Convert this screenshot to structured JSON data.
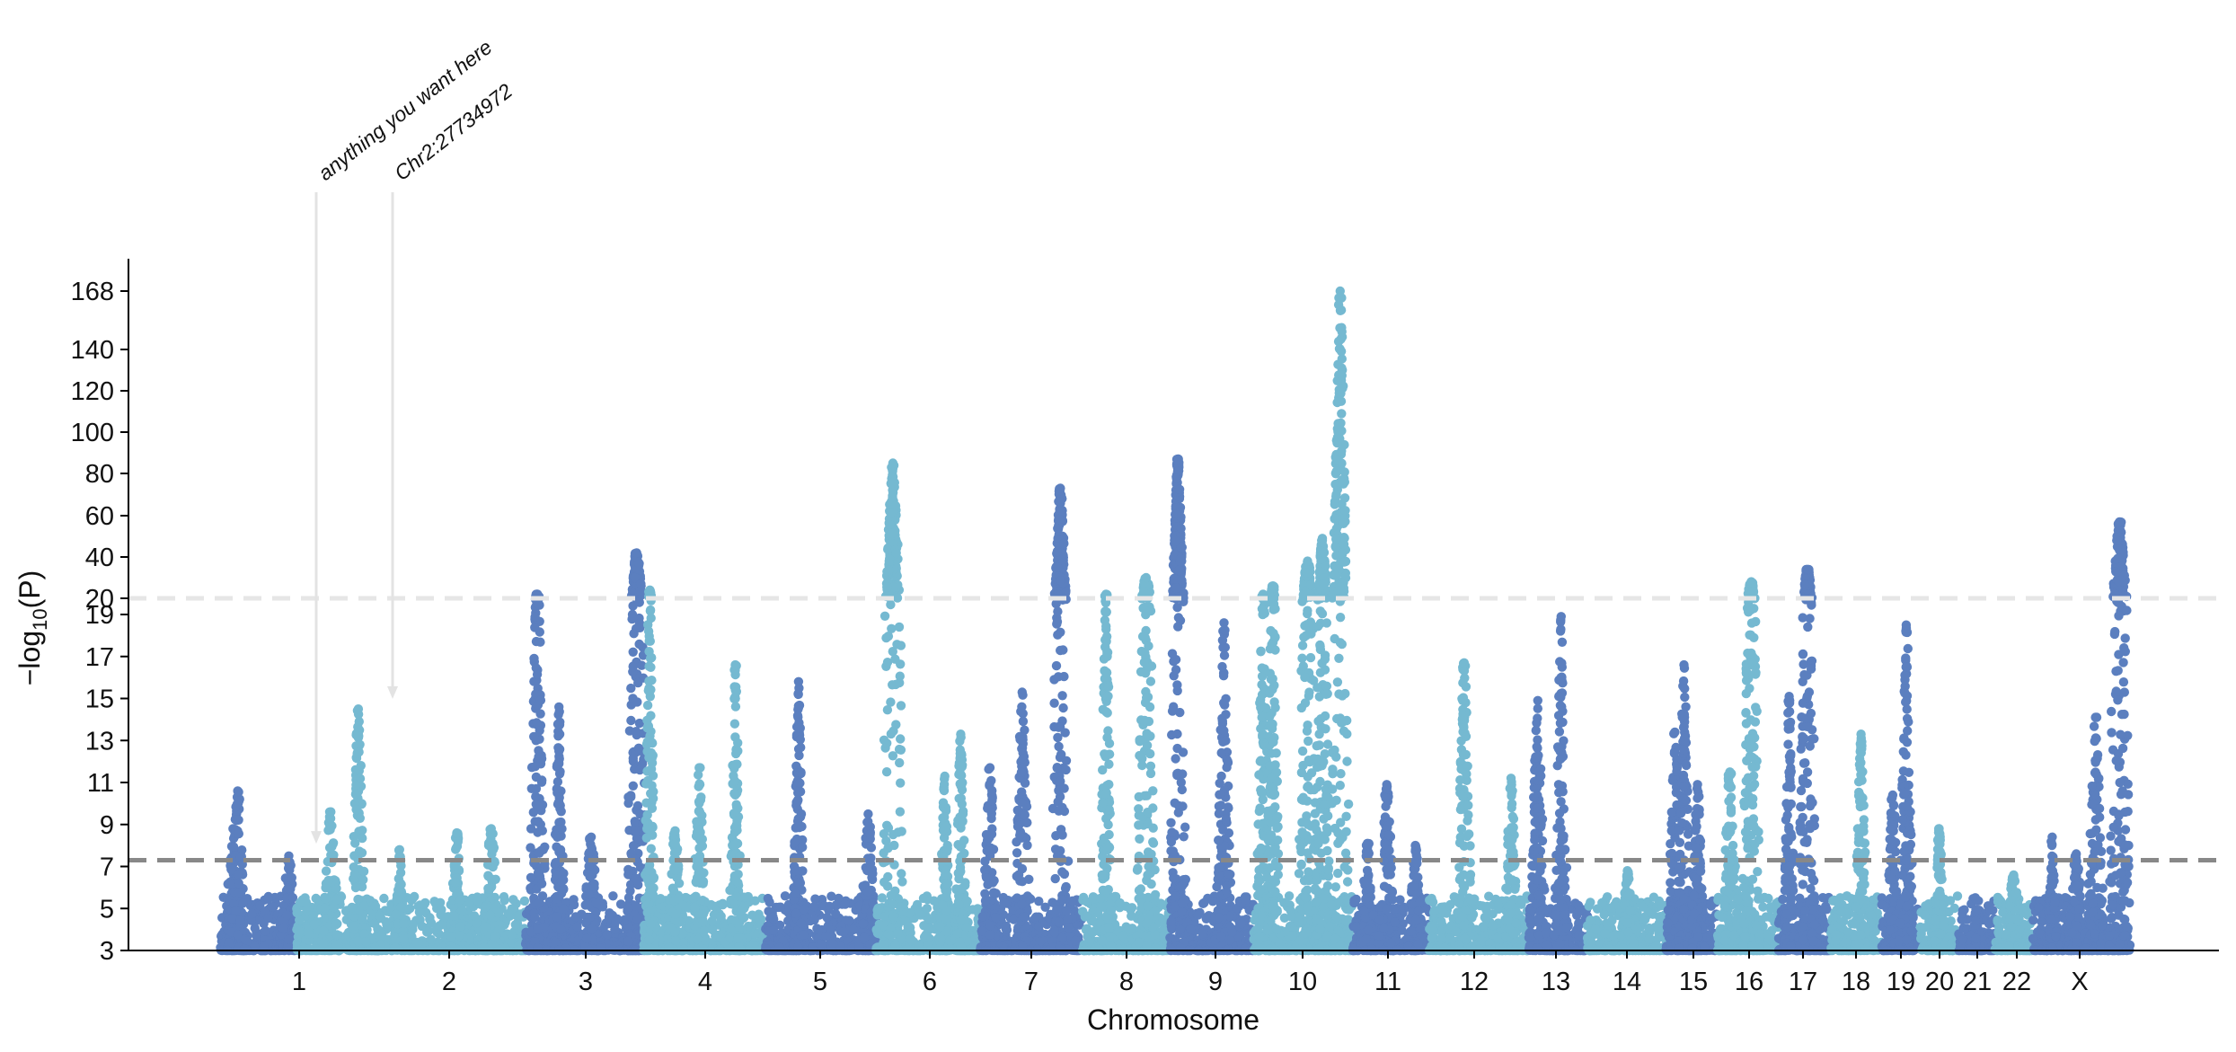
{
  "chart_data": {
    "type": "scatter",
    "subtype": "manhattan",
    "title": "",
    "xlabel": "Chromosome",
    "ylabel": "−log10(P)",
    "ylabel_main": "−log",
    "ylabel_sub": "10",
    "ylabel_tail": "(P)",
    "ylim": [
      3,
      168
    ],
    "axis_break": {
      "lower_top": 20,
      "upper_top": 168
    },
    "yticks": [
      "3",
      "5",
      "7",
      "9",
      "11",
      "13",
      "15",
      "17",
      "19",
      "20",
      "40",
      "60",
      "80",
      "100",
      "120",
      "140",
      "168"
    ],
    "threshold_suggestive": 7.3,
    "threshold_break": 20,
    "colors": {
      "dark": "#5b7fbf",
      "light": "#75b9d1",
      "threshold": "#888888",
      "break_line": "#e6e6e6",
      "annotation_arrow": "#e3e3e3",
      "axis": "#000000"
    },
    "chromosomes": [
      {
        "name": "1",
        "peaks": [
          {
            "pos": 0.17,
            "p": 8.8
          },
          {
            "pos": 0.23,
            "p": 10.6
          },
          {
            "pos": 0.9,
            "p": 7.5
          }
        ]
      },
      {
        "name": "2",
        "peaks": [
          {
            "pos": 0.15,
            "p": 9.6
          },
          {
            "pos": 0.27,
            "p": 14.5
          },
          {
            "pos": 0.45,
            "p": 7.8
          },
          {
            "pos": 0.7,
            "p": 8.6
          },
          {
            "pos": 0.85,
            "p": 8.8
          }
        ]
      },
      {
        "name": "3",
        "peaks": [
          {
            "pos": 0.1,
            "p": 22
          },
          {
            "pos": 0.28,
            "p": 14.6
          },
          {
            "pos": 0.55,
            "p": 8.4
          },
          {
            "pos": 0.93,
            "p": 42
          }
        ]
      },
      {
        "name": "4",
        "peaks": [
          {
            "pos": 0.04,
            "p": 24
          },
          {
            "pos": 0.25,
            "p": 8.7
          },
          {
            "pos": 0.45,
            "p": 11.7
          },
          {
            "pos": 0.75,
            "p": 16.6
          }
        ]
      },
      {
        "name": "5",
        "peaks": [
          {
            "pos": 0.3,
            "p": 15.8
          },
          {
            "pos": 0.93,
            "p": 9.5
          }
        ]
      },
      {
        "name": "6",
        "peaks": [
          {
            "pos": 0.16,
            "p": 85
          },
          {
            "pos": 0.65,
            "p": 11.3
          },
          {
            "pos": 0.8,
            "p": 13.3
          }
        ]
      },
      {
        "name": "7",
        "peaks": [
          {
            "pos": 0.08,
            "p": 11.7
          },
          {
            "pos": 0.4,
            "p": 15.3
          },
          {
            "pos": 0.78,
            "p": 73
          }
        ]
      },
      {
        "name": "8",
        "peaks": [
          {
            "pos": 0.27,
            "p": 22
          },
          {
            "pos": 0.73,
            "p": 30
          }
        ]
      },
      {
        "name": "9",
        "peaks": [
          {
            "pos": 0.1,
            "p": 87
          },
          {
            "pos": 0.65,
            "p": 18.6
          }
        ]
      },
      {
        "name": "10",
        "peaks": [
          {
            "pos": 0.1,
            "p": 22
          },
          {
            "pos": 0.2,
            "p": 26
          },
          {
            "pos": 0.55,
            "p": 38
          },
          {
            "pos": 0.7,
            "p": 49
          },
          {
            "pos": 0.88,
            "p": 168
          }
        ]
      },
      {
        "name": "11",
        "peaks": [
          {
            "pos": 0.2,
            "p": 8.1
          },
          {
            "pos": 0.45,
            "p": 10.9
          },
          {
            "pos": 0.82,
            "p": 8.0
          }
        ]
      },
      {
        "name": "12",
        "peaks": [
          {
            "pos": 0.35,
            "p": 16.7
          },
          {
            "pos": 0.82,
            "p": 11.2
          }
        ]
      },
      {
        "name": "13",
        "peaks": [
          {
            "pos": 0.15,
            "p": 14.9
          },
          {
            "pos": 0.55,
            "p": 18.9
          }
        ]
      },
      {
        "name": "14",
        "peaks": [
          {
            "pos": 0.5,
            "p": 6.8
          }
        ]
      },
      {
        "name": "15",
        "peaks": [
          {
            "pos": 0.15,
            "p": 13.4
          },
          {
            "pos": 0.33,
            "p": 16.6
          },
          {
            "pos": 0.6,
            "p": 10.9
          }
        ]
      },
      {
        "name": "16",
        "peaks": [
          {
            "pos": 0.2,
            "p": 11.5
          },
          {
            "pos": 0.55,
            "p": 28
          }
        ]
      },
      {
        "name": "17",
        "peaks": [
          {
            "pos": 0.2,
            "p": 15.1
          },
          {
            "pos": 0.55,
            "p": 34
          }
        ]
      },
      {
        "name": "18",
        "peaks": [
          {
            "pos": 0.6,
            "p": 13.3
          }
        ]
      },
      {
        "name": "19",
        "peaks": [
          {
            "pos": 0.3,
            "p": 10.4
          },
          {
            "pos": 0.65,
            "p": 18.5
          }
        ]
      },
      {
        "name": "20",
        "peaks": [
          {
            "pos": 0.5,
            "p": 8.8
          }
        ]
      },
      {
        "name": "21",
        "peaks": [
          {
            "pos": 0.5,
            "p": 4.9
          }
        ]
      },
      {
        "name": "22",
        "peaks": [
          {
            "pos": 0.5,
            "p": 6.6
          }
        ]
      },
      {
        "name": "X",
        "peaks": [
          {
            "pos": 0.2,
            "p": 8.4
          },
          {
            "pos": 0.45,
            "p": 7.6
          },
          {
            "pos": 0.65,
            "p": 14.1
          },
          {
            "pos": 0.9,
            "p": 57
          }
        ]
      }
    ],
    "annotations": [
      {
        "text": "anything you want here",
        "chromosome": "1",
        "pos": 0.9,
        "p": 8.0
      },
      {
        "text": "Chr2:27734972",
        "chromosome": "2",
        "pos": 0.27,
        "p": 14.9
      }
    ]
  }
}
